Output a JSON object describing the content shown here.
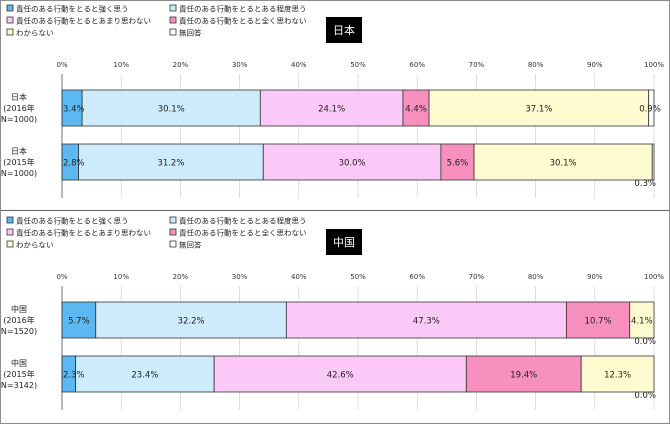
{
  "colors": {
    "cat1": "#5bb8f0",
    "cat2": "#cdebfb",
    "cat3": "#fbc9f8",
    "cat4": "#f78fbf",
    "cat5": "#fdfbcf",
    "cat6": "#ffffff",
    "label_box_bg": "#000000",
    "label_box_text": "#ffffff"
  },
  "legend": [
    "責任のある行動をとると強く思う",
    "責任のある行動をとるとある程度思う",
    "責任のある行動をとるとあまり思わない",
    "責任のある行動をとると全く思わない",
    "わからない",
    "無回答"
  ],
  "chart_data": [
    {
      "type": "bar",
      "orientation": "horizontal-stacked-100",
      "title": "日本",
      "x_ticks": [
        "0%",
        "10%",
        "20%",
        "30%",
        "40%",
        "50%",
        "60%",
        "70%",
        "80%",
        "90%",
        "100%"
      ],
      "xlim": [
        0,
        100
      ],
      "rows": [
        {
          "label": [
            "日本",
            "(2016年",
            "N=1000)"
          ],
          "values": [
            3.4,
            30.1,
            24.1,
            4.4,
            37.1,
            0.9
          ],
          "value_labels": [
            "3.4%",
            "30.1%",
            "24.1%",
            "4.4%",
            "37.1%",
            "0.9%"
          ]
        },
        {
          "label": [
            "日本",
            "(2015年",
            "N=1000)"
          ],
          "values": [
            2.8,
            31.2,
            30.0,
            5.6,
            30.1,
            0.3
          ],
          "value_labels": [
            "2.8%",
            "31.2%",
            "30.0%",
            "5.6%",
            "30.1%",
            "0.3%"
          ]
        }
      ]
    },
    {
      "type": "bar",
      "orientation": "horizontal-stacked-100",
      "title": "中国",
      "x_ticks": [
        "0%",
        "10%",
        "20%",
        "30%",
        "40%",
        "50%",
        "60%",
        "70%",
        "80%",
        "90%",
        "100%"
      ],
      "xlim": [
        0,
        100
      ],
      "rows": [
        {
          "label": [
            "中国",
            "(2016年",
            "N=1520)"
          ],
          "values": [
            5.7,
            32.2,
            47.3,
            10.7,
            4.1,
            0.0
          ],
          "value_labels": [
            "5.7%",
            "32.2%",
            "47.3%",
            "10.7%",
            "4.1%",
            "0.0%"
          ]
        },
        {
          "label": [
            "中国",
            "(2015年",
            "N=3142)"
          ],
          "values": [
            2.3,
            23.4,
            42.6,
            19.4,
            12.3,
            0.0
          ],
          "value_labels": [
            "2.3%",
            "23.4%",
            "42.6%",
            "19.4%",
            "12.3%",
            "0.0%"
          ]
        }
      ]
    }
  ]
}
